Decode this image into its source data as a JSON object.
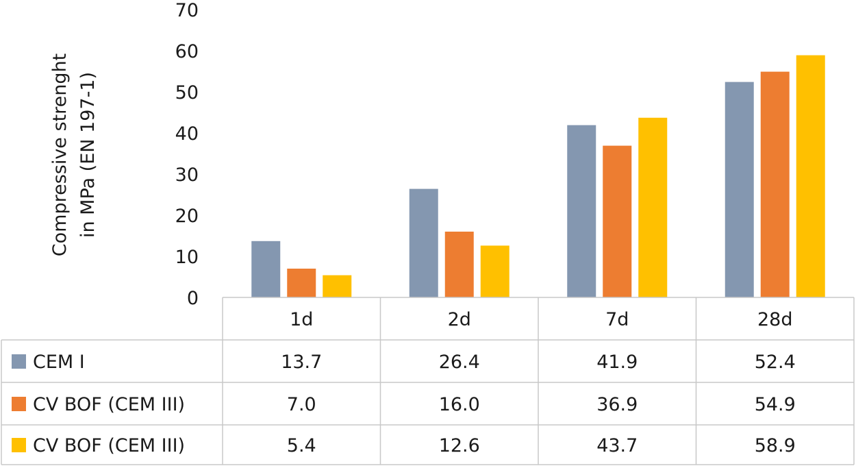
{
  "chart_data": {
    "type": "bar",
    "title": "",
    "xlabel": "",
    "ylabel_lines": [
      "Compressive strenght",
      "in MPa (EN 197-1)"
    ],
    "ylim": [
      0,
      70
    ],
    "yticks": [
      0,
      10,
      20,
      30,
      40,
      50,
      60,
      70
    ],
    "categories": [
      "1d",
      "2d",
      "7d",
      "28d"
    ],
    "series": [
      {
        "name": "CEM I",
        "color": "#8497b0",
        "values": [
          13.7,
          26.4,
          41.9,
          52.4
        ],
        "labels": [
          "13.7",
          "26.4",
          "41.9",
          "52.4"
        ]
      },
      {
        "name": "CV BOF (CEM III)",
        "color": "#ed7d31",
        "values": [
          7.0,
          16.0,
          36.9,
          54.9
        ],
        "labels": [
          "7.0",
          "16.0",
          "36.9",
          "54.9"
        ]
      },
      {
        "name": "CV BOF (CEM III)",
        "color": "#ffc000",
        "values": [
          5.4,
          12.6,
          43.7,
          58.9
        ],
        "labels": [
          "5.4",
          "12.6",
          "43.7",
          "58.9"
        ]
      }
    ],
    "grid": false,
    "legend": "data-table-left"
  }
}
